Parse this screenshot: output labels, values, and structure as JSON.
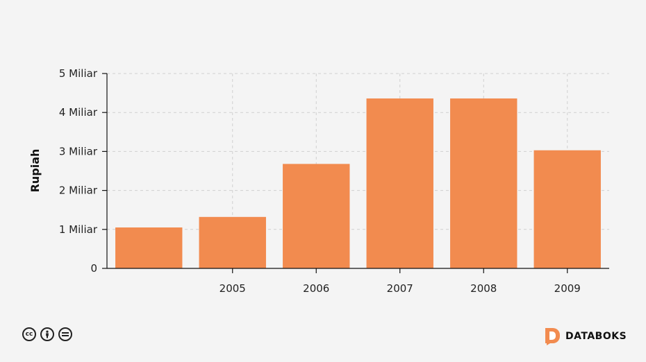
{
  "chart_data": {
    "type": "bar",
    "categories": [
      "",
      "2005",
      "2006",
      "2007",
      "2008",
      "2009"
    ],
    "values": [
      1.05,
      1.32,
      2.68,
      4.36,
      4.36,
      3.03
    ],
    "title": "",
    "xlabel": "",
    "ylabel": "Rupiah",
    "ylim": [
      0,
      5
    ],
    "yticks": [
      {
        "value": 0,
        "label": "0"
      },
      {
        "value": 1,
        "label": "1 Miliar"
      },
      {
        "value": 2,
        "label": "2 Miliar"
      },
      {
        "value": 3,
        "label": "3 Miliar"
      },
      {
        "value": 4,
        "label": "4 Miliar"
      },
      {
        "value": 5,
        "label": "5 Miliar"
      }
    ],
    "grid": true,
    "bar_color": "#f28b4f"
  },
  "footer": {
    "license_icons": [
      "cc-icon",
      "attribution-icon",
      "no-derivatives-icon"
    ],
    "brand_name": "DATABOKS",
    "brand_color": "#f28b4f"
  }
}
